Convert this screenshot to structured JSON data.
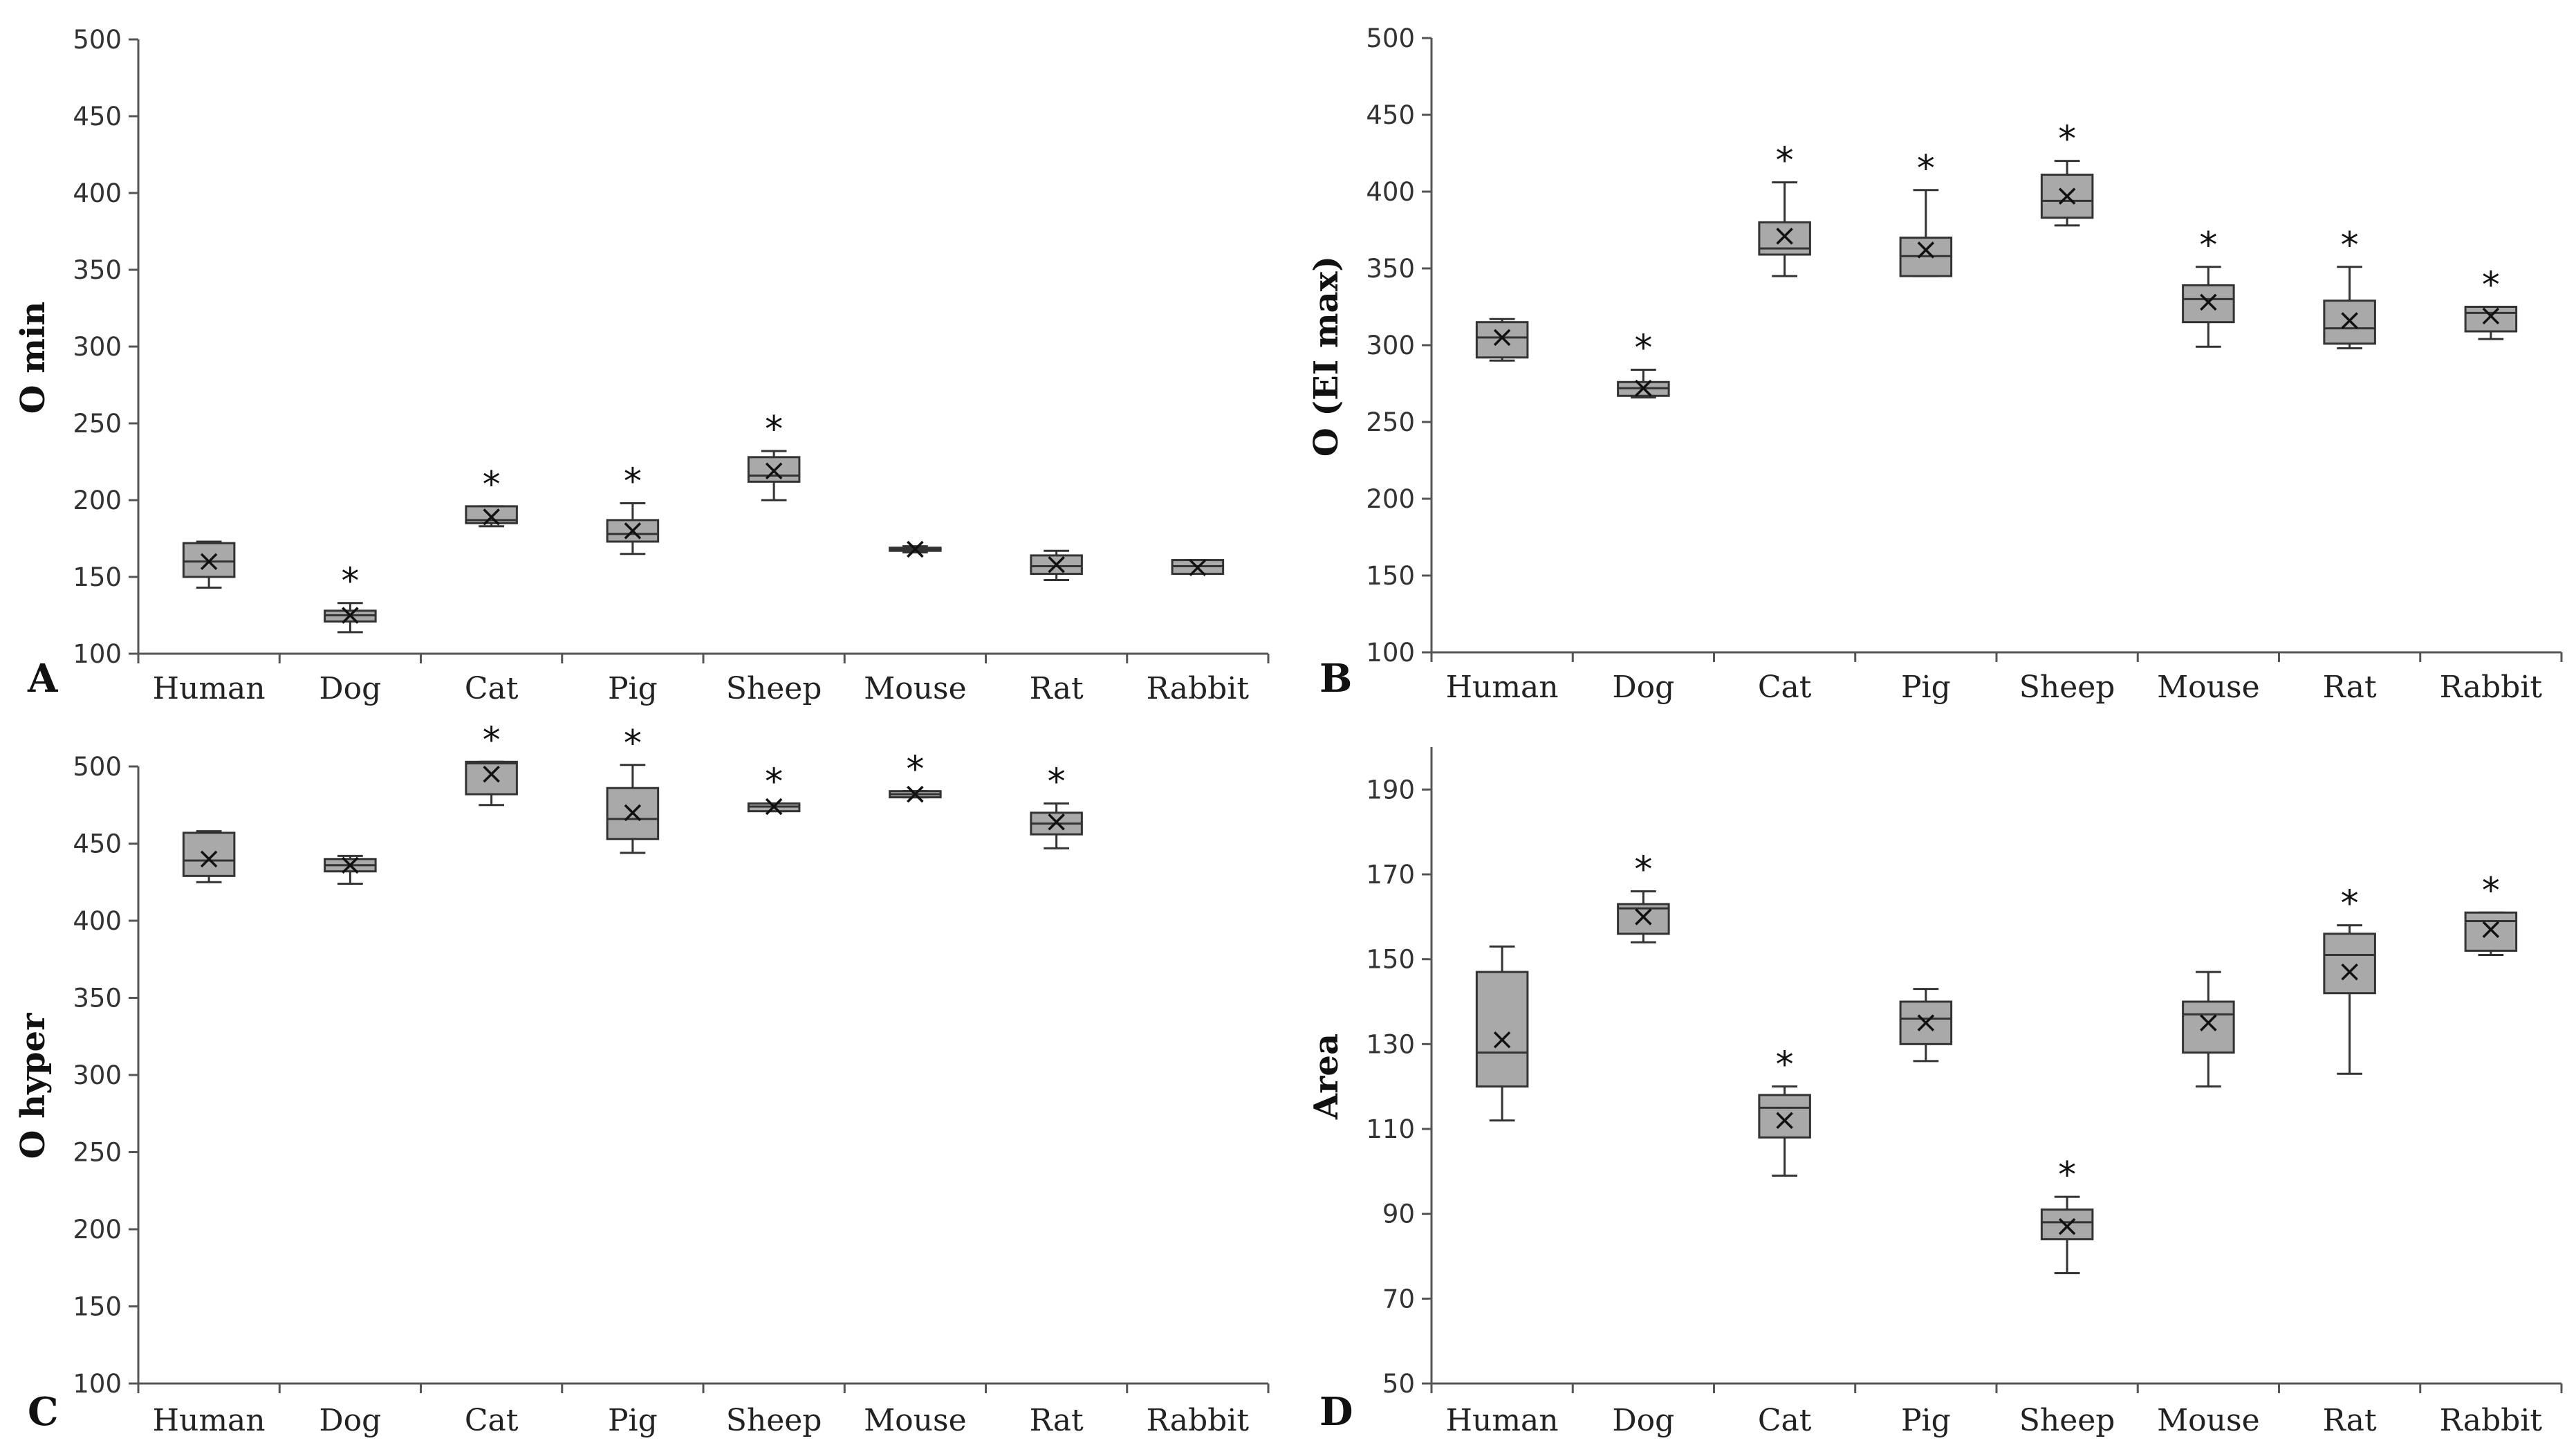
{
  "chart_data": [
    {
      "type": "boxplot",
      "panel_label": "A",
      "ylabel": "O min",
      "xlabel": "",
      "ylim": [
        100,
        500
      ],
      "yticks": [
        100,
        150,
        200,
        250,
        300,
        350,
        400,
        450,
        500
      ],
      "categories": [
        "Human",
        "Dog",
        "Cat",
        "Pig",
        "Sheep",
        "Mouse",
        "Rat",
        "Rabbit"
      ],
      "boxes": [
        {
          "min": 143,
          "q1": 150,
          "median": 160,
          "q3": 172,
          "max": 173,
          "mean": 160,
          "significant": false
        },
        {
          "min": 114,
          "q1": 121,
          "median": 125,
          "q3": 128,
          "max": 133,
          "mean": 125,
          "significant": true
        },
        {
          "min": 183,
          "q1": 185,
          "median": 187,
          "q3": 196,
          "max": 196,
          "mean": 189,
          "significant": true
        },
        {
          "min": 165,
          "q1": 173,
          "median": 178,
          "q3": 187,
          "max": 198,
          "mean": 180,
          "significant": true
        },
        {
          "min": 200,
          "q1": 212,
          "median": 216,
          "q3": 228,
          "max": 232,
          "mean": 219,
          "significant": true
        },
        {
          "min": 166,
          "q1": 167,
          "median": 168,
          "q3": 169,
          "max": 170,
          "mean": 168,
          "significant": false
        },
        {
          "min": 148,
          "q1": 152,
          "median": 157,
          "q3": 164,
          "max": 167,
          "mean": 158,
          "significant": false
        },
        {
          "min": 152,
          "q1": 152,
          "median": 157,
          "q3": 161,
          "max": 161,
          "mean": 156,
          "significant": false
        }
      ]
    },
    {
      "type": "boxplot",
      "panel_label": "B",
      "ylabel": "O (EI max)",
      "xlabel": "",
      "ylim": [
        100,
        500
      ],
      "yticks": [
        100,
        150,
        200,
        250,
        300,
        350,
        400,
        450,
        500
      ],
      "categories": [
        "Human",
        "Dog",
        "Cat",
        "Pig",
        "Sheep",
        "Mouse",
        "Rat",
        "Rabbit"
      ],
      "boxes": [
        {
          "min": 290,
          "q1": 292,
          "median": 305,
          "q3": 315,
          "max": 317,
          "mean": 305,
          "significant": false
        },
        {
          "min": 266,
          "q1": 267,
          "median": 272,
          "q3": 276,
          "max": 284,
          "mean": 272,
          "significant": true
        },
        {
          "min": 345,
          "q1": 359,
          "median": 363,
          "q3": 380,
          "max": 406,
          "mean": 371,
          "significant": true
        },
        {
          "min": 345,
          "q1": 345,
          "median": 358,
          "q3": 370,
          "max": 401,
          "mean": 362,
          "significant": true
        },
        {
          "min": 378,
          "q1": 383,
          "median": 394,
          "q3": 411,
          "max": 420,
          "mean": 397,
          "significant": true
        },
        {
          "min": 299,
          "q1": 315,
          "median": 330,
          "q3": 339,
          "max": 351,
          "mean": 328,
          "significant": true
        },
        {
          "min": 298,
          "q1": 301,
          "median": 311,
          "q3": 329,
          "max": 351,
          "mean": 316,
          "significant": true
        },
        {
          "min": 304,
          "q1": 309,
          "median": 321,
          "q3": 325,
          "max": 325,
          "mean": 319,
          "significant": true
        }
      ]
    },
    {
      "type": "boxplot",
      "panel_label": "C",
      "ylabel": "O hyper",
      "xlabel": "",
      "ylim": [
        100,
        500
      ],
      "yticks": [
        100,
        150,
        200,
        250,
        300,
        350,
        400,
        450,
        500
      ],
      "categories": [
        "Human",
        "Dog",
        "Cat",
        "Pig",
        "Sheep",
        "Mouse",
        "Rat",
        "Rabbit"
      ],
      "boxes": [
        {
          "min": 425,
          "q1": 429,
          "median": 439,
          "q3": 457,
          "max": 458,
          "mean": 440,
          "significant": false
        },
        {
          "min": 424,
          "q1": 432,
          "median": 436,
          "q3": 440,
          "max": 442,
          "mean": 436,
          "significant": false
        },
        {
          "min": 475,
          "q1": 482,
          "median": 502,
          "q3": 503,
          "max": 503,
          "mean": 495,
          "significant": true
        },
        {
          "min": 444,
          "q1": 453,
          "median": 466,
          "q3": 486,
          "max": 501,
          "mean": 470,
          "significant": true
        },
        {
          "min": 471,
          "q1": 471,
          "median": 474,
          "q3": 476,
          "max": 476,
          "mean": 474,
          "significant": true
        },
        {
          "min": 480,
          "q1": 480,
          "median": 482,
          "q3": 484,
          "max": 484,
          "mean": 482,
          "significant": true
        },
        {
          "min": 447,
          "q1": 456,
          "median": 463,
          "q3": 470,
          "max": 476,
          "mean": 464,
          "significant": true
        },
        {
          "min": null,
          "q1": null,
          "median": null,
          "q3": null,
          "max": null,
          "mean": null,
          "significant": false
        }
      ]
    },
    {
      "type": "boxplot",
      "panel_label": "D",
      "ylabel": "Area",
      "xlabel": "",
      "ylim": [
        50,
        200
      ],
      "yticks": [
        50,
        70,
        90,
        110,
        130,
        150,
        170,
        190
      ],
      "categories": [
        "Human",
        "Dog",
        "Cat",
        "Pig",
        "Sheep",
        "Mouse",
        "Rat",
        "Rabbit"
      ],
      "boxes": [
        {
          "min": 112,
          "q1": 120,
          "median": 128,
          "q3": 147,
          "max": 153,
          "mean": 131,
          "significant": false
        },
        {
          "min": 154,
          "q1": 156,
          "median": 162,
          "q3": 163,
          "max": 166,
          "mean": 160,
          "significant": true
        },
        {
          "min": 99,
          "q1": 108,
          "median": 115,
          "q3": 118,
          "max": 120,
          "mean": 112,
          "significant": true
        },
        {
          "min": 126,
          "q1": 130,
          "median": 136,
          "q3": 140,
          "max": 143,
          "mean": 135,
          "significant": false
        },
        {
          "min": 76,
          "q1": 84,
          "median": 88,
          "q3": 91,
          "max": 94,
          "mean": 87,
          "significant": true
        },
        {
          "min": 120,
          "q1": 128,
          "median": 137,
          "q3": 140,
          "max": 147,
          "mean": 135,
          "significant": false
        },
        {
          "min": 123,
          "q1": 142,
          "median": 151,
          "q3": 156,
          "max": 158,
          "mean": 147,
          "significant": true
        },
        {
          "min": 151,
          "q1": 152,
          "median": 159,
          "q3": 161,
          "max": 161,
          "mean": 157,
          "significant": true
        }
      ]
    }
  ],
  "significance_marker": "*",
  "colors": {
    "box_fill": "#a9a9a9",
    "line": "#333333",
    "axis": "#555555",
    "text": "#222222"
  }
}
